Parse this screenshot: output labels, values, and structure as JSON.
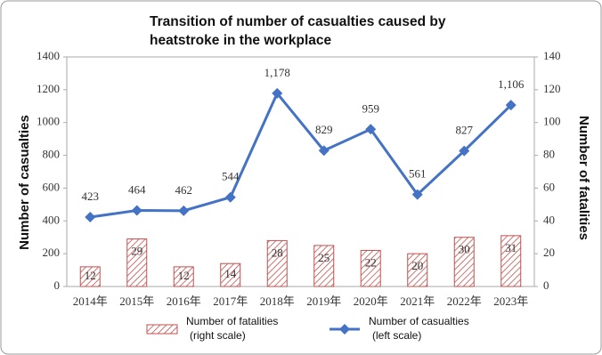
{
  "chart_data": {
    "type": "bar-line",
    "title": "Transition of number of casualties caused by heatstroke in the workplace",
    "y_label": "Number of casualties",
    "y2_label": "Number of fatalities",
    "categories": [
      "2014年",
      "2015年",
      "2016年",
      "2017年",
      "2018年",
      "2019年",
      "2020年",
      "2021年",
      "2022年",
      "2023年"
    ],
    "ylim": [
      0,
      1400
    ],
    "yticks": [
      0,
      200,
      400,
      600,
      800,
      1000,
      1200,
      1400
    ],
    "y2lim": [
      0,
      140
    ],
    "y2ticks": [
      0,
      20,
      40,
      60,
      80,
      100,
      120,
      140
    ],
    "grid": false,
    "series": [
      {
        "name": "Number of fatalities",
        "scale_note": "(right scale)",
        "type": "bar",
        "axis": "y2",
        "color": "#c0504d",
        "values": [
          12,
          29,
          12,
          14,
          28,
          25,
          22,
          20,
          30,
          31
        ]
      },
      {
        "name": "Number of casualties",
        "scale_note": "(left scale)",
        "type": "line",
        "color": "#4472c4",
        "values": [
          423,
          464,
          462,
          544,
          1178,
          829,
          959,
          561,
          827,
          1106
        ],
        "value_labels": [
          "423",
          "464",
          "462",
          "544",
          "1,178",
          "829",
          "959",
          "561",
          "827",
          "1,106"
        ]
      }
    ]
  }
}
